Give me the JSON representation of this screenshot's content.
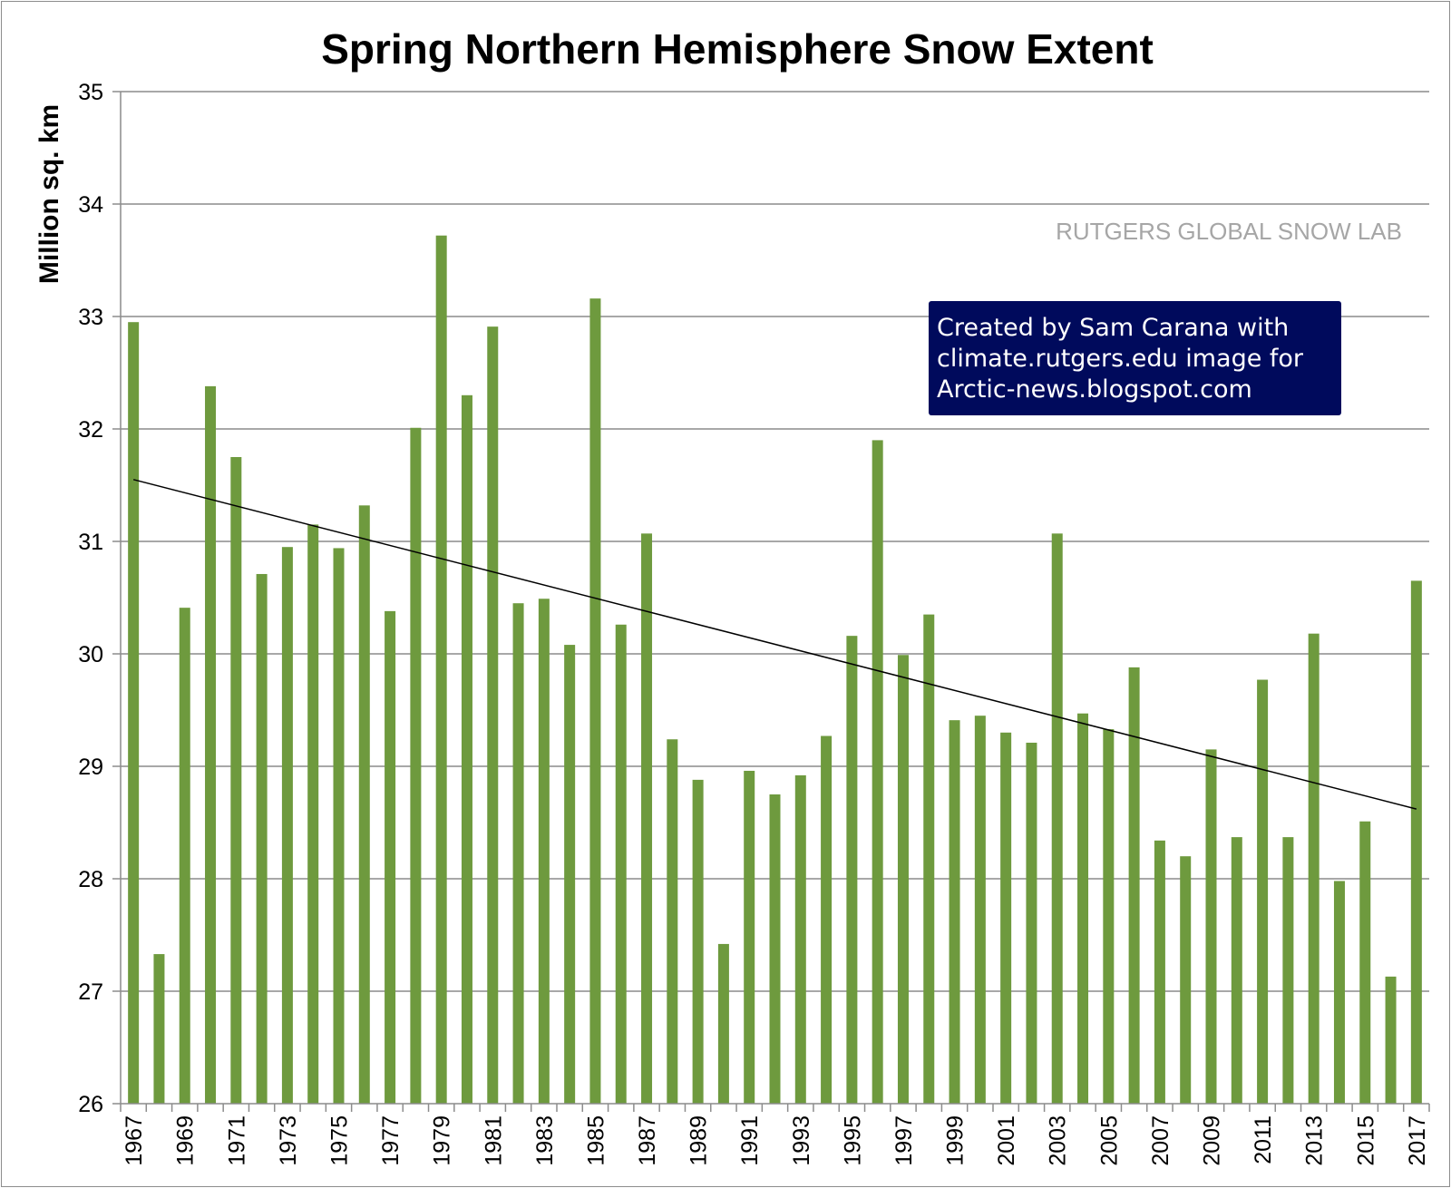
{
  "chart_data": {
    "type": "bar",
    "title": "Spring Northern Hemisphere Snow Extent",
    "ylabel": "Million sq. km",
    "xlabel": "",
    "ylim": [
      26,
      35
    ],
    "yticks": [
      26,
      27,
      28,
      29,
      30,
      31,
      32,
      33,
      34,
      35
    ],
    "grid": true,
    "bar_color": "#6e9a3e",
    "categories": [
      1967,
      1968,
      1969,
      1970,
      1971,
      1972,
      1973,
      1974,
      1975,
      1976,
      1977,
      1978,
      1979,
      1980,
      1981,
      1982,
      1983,
      1984,
      1985,
      1986,
      1987,
      1988,
      1989,
      1990,
      1991,
      1992,
      1993,
      1994,
      1995,
      1996,
      1997,
      1998,
      1999,
      2000,
      2001,
      2002,
      2003,
      2004,
      2005,
      2006,
      2007,
      2008,
      2009,
      2010,
      2011,
      2012,
      2013,
      2014,
      2015,
      2016,
      2017
    ],
    "values": [
      32.95,
      27.33,
      30.41,
      32.38,
      31.75,
      30.71,
      30.95,
      31.15,
      30.94,
      31.32,
      30.38,
      32.01,
      33.72,
      32.3,
      32.91,
      30.45,
      30.49,
      30.08,
      33.16,
      30.26,
      31.07,
      29.24,
      28.88,
      27.42,
      28.96,
      28.75,
      28.92,
      29.27,
      30.16,
      31.9,
      29.99,
      30.35,
      29.41,
      29.45,
      29.3,
      29.21,
      31.07,
      29.47,
      29.33,
      29.88,
      28.34,
      28.2,
      29.15,
      28.37,
      29.77,
      28.37,
      30.18,
      27.98,
      28.51,
      27.13,
      30.65
    ],
    "trendline": {
      "start_value": 31.55,
      "end_value": 28.62,
      "color": "#000000"
    },
    "annotations": {
      "watermark": "RUTGERS GLOBAL SNOW LAB",
      "credit_lines": [
        "Created by Sam Carana with",
        "climate.rutgers.edu image for",
        "Arctic-news.blogspot.com"
      ],
      "credit_bg": "#000a5c"
    }
  }
}
